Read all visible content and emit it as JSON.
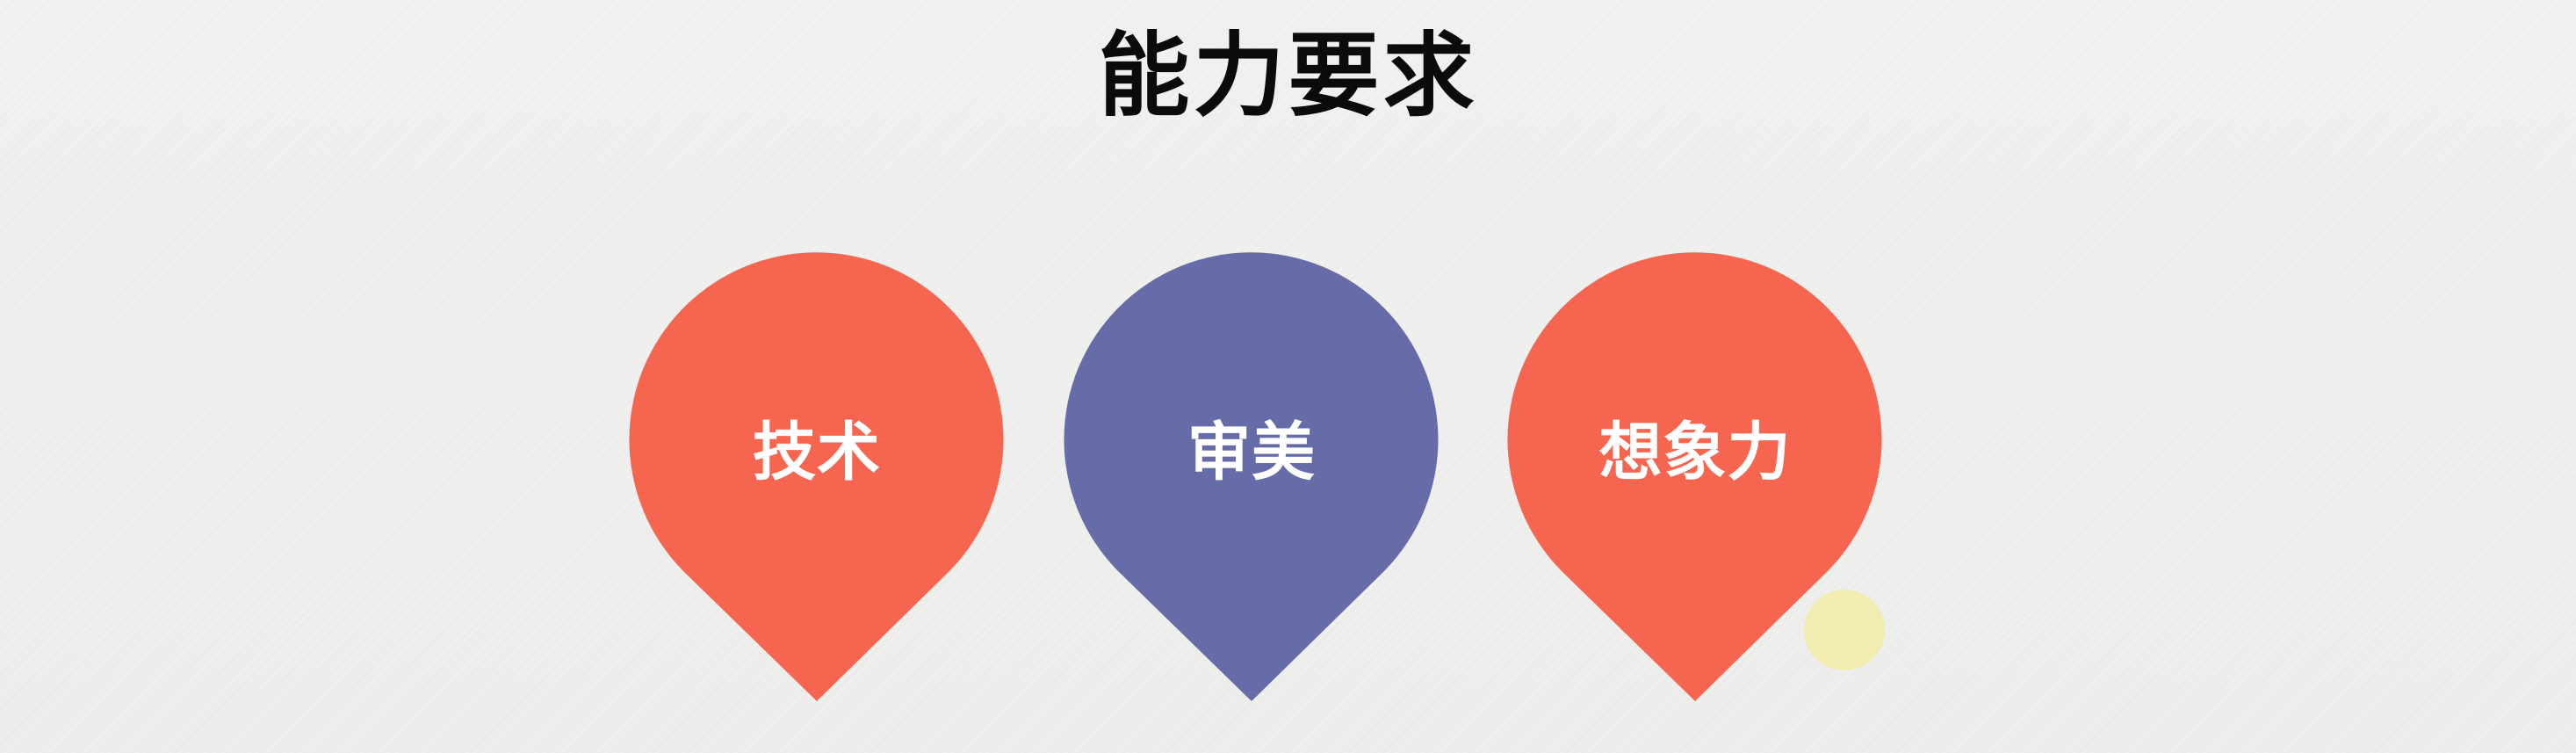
{
  "slide": {
    "title": "能力要求",
    "pins": [
      {
        "label": "技术",
        "color": "#f6654f"
      },
      {
        "label": "审美",
        "color": "#656ca7"
      },
      {
        "label": "想象力",
        "color": "#f6654f"
      }
    ],
    "accent_dot_color": "#f2ecb0"
  }
}
